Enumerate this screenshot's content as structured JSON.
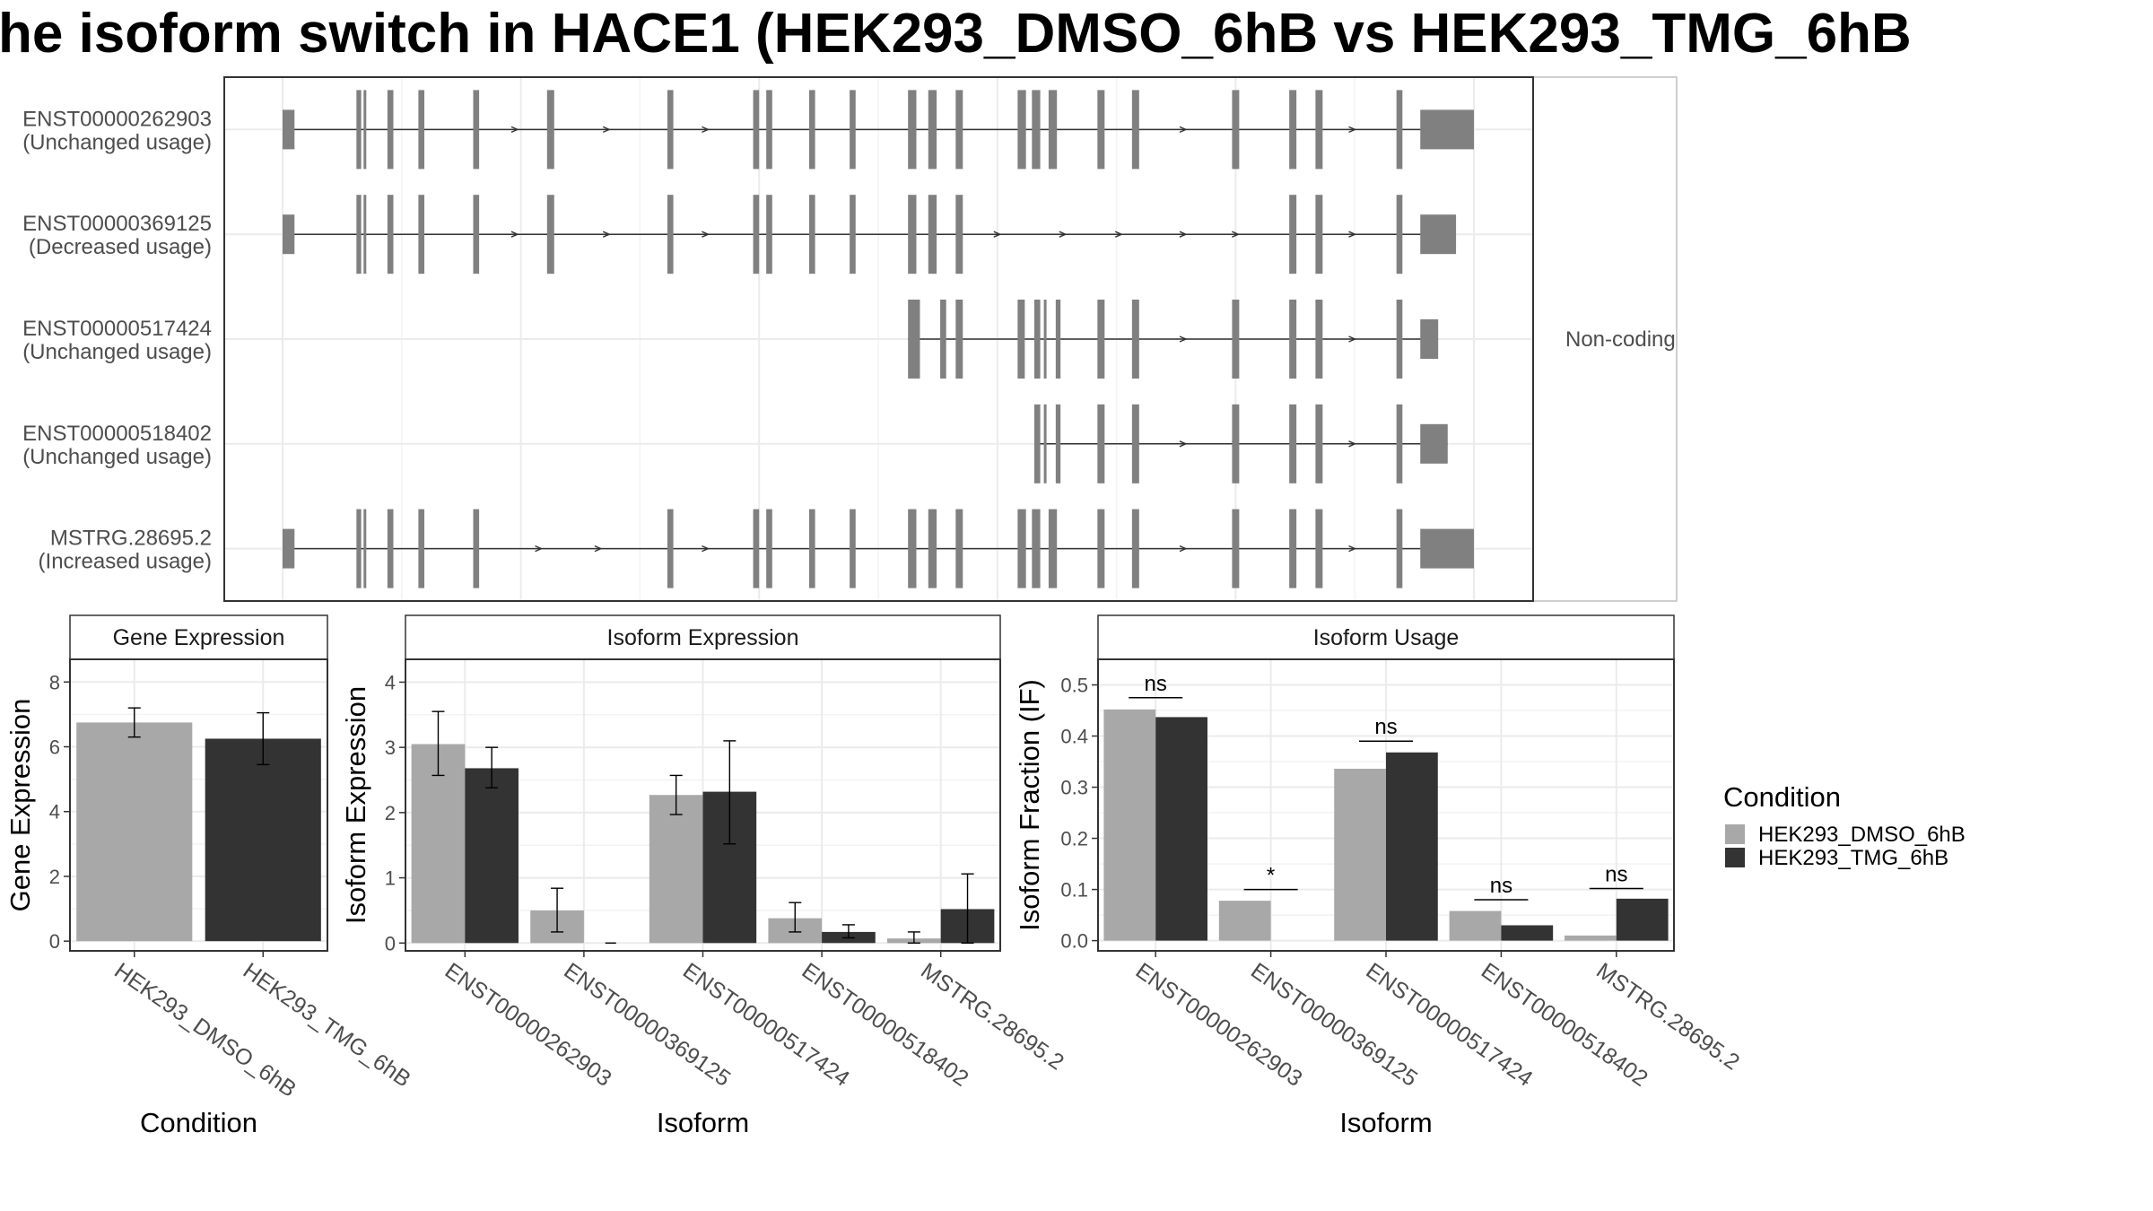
{
  "title": "he isoform switch in HACE1 (HEK293_DMSO_6hB vs HEK293_TMG_6hB",
  "colors": {
    "dmso": "#a8a8a8",
    "tmg": "#333333",
    "exon": "#808080",
    "grid": "#ebebeb",
    "panel_border": "#333333",
    "strip_fill": "#ffffff"
  },
  "structure_panel": {
    "side_label": "Non-coding",
    "genomic_range": [
      0,
      100
    ],
    "transcripts": [
      {
        "label": "ENST00000262903",
        "usage": "(Unchanged usage)",
        "exons": [
          [
            0,
            1
          ],
          [
            6.2,
            6.6
          ],
          [
            6.8,
            7
          ],
          [
            8.8,
            9.3
          ],
          [
            11.4,
            11.9
          ],
          [
            16,
            16.5
          ],
          [
            22.2,
            22.8
          ],
          [
            32.3,
            32.8
          ],
          [
            39.5,
            40
          ],
          [
            40.6,
            41.1
          ],
          [
            44.2,
            44.7
          ],
          [
            47.6,
            48.1
          ],
          [
            52.5,
            53.2
          ],
          [
            54.2,
            54.9
          ],
          [
            56.5,
            57.1
          ],
          [
            61.7,
            62.4
          ],
          [
            62.9,
            63.6
          ],
          [
            64.3,
            65
          ],
          [
            68.4,
            69
          ],
          [
            71.3,
            71.9
          ],
          [
            79.7,
            80.3
          ],
          [
            84.5,
            85.1
          ],
          [
            86.7,
            87.3
          ],
          [
            93.5,
            94
          ],
          [
            95.5,
            100
          ]
        ],
        "arrows": [
          19.5,
          27.2,
          35.5,
          75.6,
          89.8
        ]
      },
      {
        "label": "ENST00000369125",
        "usage": "(Decreased usage)",
        "exons": [
          [
            0,
            1
          ],
          [
            6.2,
            6.6
          ],
          [
            6.8,
            7
          ],
          [
            8.8,
            9.3
          ],
          [
            11.4,
            11.9
          ],
          [
            16,
            16.5
          ],
          [
            22.2,
            22.8
          ],
          [
            32.3,
            32.8
          ],
          [
            39.5,
            40
          ],
          [
            40.6,
            41.1
          ],
          [
            44.2,
            44.7
          ],
          [
            47.6,
            48.1
          ],
          [
            52.5,
            53.2
          ],
          [
            54.2,
            54.9
          ],
          [
            56.5,
            57.1
          ],
          [
            84.5,
            85.1
          ],
          [
            86.7,
            87.3
          ],
          [
            93.5,
            94
          ],
          [
            95.5,
            98.5
          ]
        ],
        "arrows": [
          19.5,
          27.2,
          35.5,
          60,
          65.5,
          70.2,
          75.6,
          80,
          89.8
        ]
      },
      {
        "label": "ENST00000517424",
        "usage": "(Unchanged usage)",
        "exons": [
          [
            52.5,
            53.5
          ],
          [
            55.2,
            55.7
          ],
          [
            56.5,
            57.1
          ],
          [
            61.7,
            62.3
          ],
          [
            63.1,
            63.6
          ],
          [
            63.9,
            64.1
          ],
          [
            64.9,
            65.3
          ],
          [
            68.4,
            69
          ],
          [
            71.3,
            71.9
          ],
          [
            79.7,
            80.3
          ],
          [
            84.5,
            85.1
          ],
          [
            86.7,
            87.3
          ],
          [
            93.5,
            94
          ],
          [
            95.5,
            97
          ]
        ],
        "arrows": [
          75.6,
          89.8
        ]
      },
      {
        "label": "ENST00000518402",
        "usage": "(Unchanged usage)",
        "exons": [
          [
            63.1,
            63.6
          ],
          [
            63.9,
            64.1
          ],
          [
            64.9,
            65.3
          ],
          [
            68.4,
            69
          ],
          [
            71.3,
            71.9
          ],
          [
            79.7,
            80.3
          ],
          [
            84.5,
            85.1
          ],
          [
            86.7,
            87.3
          ],
          [
            93.5,
            94
          ],
          [
            95.5,
            97.8
          ]
        ],
        "arrows": [
          75.6,
          80,
          89.8
        ]
      },
      {
        "label": "MSTRG.28695.2",
        "usage": "(Increased usage)",
        "exons": [
          [
            0,
            1
          ],
          [
            6.2,
            6.6
          ],
          [
            6.8,
            7
          ],
          [
            8.8,
            9.3
          ],
          [
            11.4,
            11.9
          ],
          [
            16,
            16.5
          ],
          [
            32.3,
            32.8
          ],
          [
            39.5,
            40
          ],
          [
            40.6,
            41.1
          ],
          [
            44.2,
            44.7
          ],
          [
            47.6,
            48.1
          ],
          [
            52.5,
            53.2
          ],
          [
            54.2,
            54.9
          ],
          [
            56.5,
            57.1
          ],
          [
            61.7,
            62.4
          ],
          [
            62.9,
            63.6
          ],
          [
            64.3,
            65
          ],
          [
            68.4,
            69
          ],
          [
            71.3,
            71.9
          ],
          [
            79.7,
            80.3
          ],
          [
            84.5,
            85.1
          ],
          [
            86.7,
            87.3
          ],
          [
            93.5,
            94
          ],
          [
            95.5,
            100
          ]
        ],
        "arrows": [
          21.5,
          26.5,
          35.5,
          75.6,
          89.8
        ]
      }
    ]
  },
  "chart_data": [
    {
      "type": "bar",
      "strip": "Gene Expression",
      "xlabel": "Condition",
      "ylabel": "Gene Expression",
      "ylim": [
        -0.3,
        8.7
      ],
      "yticks": [
        0,
        2,
        4,
        6,
        8
      ],
      "categories": [
        "HEK293_DMSO_6hB",
        "HEK293_TMG_6hB"
      ],
      "values": [
        6.75,
        6.25
      ],
      "errors": [
        [
          6.3,
          7.2
        ],
        [
          5.45,
          7.05
        ]
      ]
    },
    {
      "type": "bar",
      "strip": "Isoform Expression",
      "xlabel": "Isoform",
      "ylabel": "Isoform Expression",
      "ylim": [
        -0.12,
        4.35
      ],
      "yticks": [
        0,
        1,
        2,
        3,
        4
      ],
      "categories": [
        "ENST00000262903",
        "ENST00000369125",
        "ENST00000517424",
        "ENST00000518402",
        "MSTRG.28695.2"
      ],
      "series": [
        {
          "name": "HEK293_DMSO_6hB",
          "values": [
            3.05,
            0.5,
            2.27,
            0.38,
            0.07
          ],
          "errors": [
            [
              2.57,
              3.55
            ],
            [
              0.17,
              0.84
            ],
            [
              1.97,
              2.57
            ],
            [
              0.17,
              0.62
            ],
            [
              0.0,
              0.17
            ]
          ]
        },
        {
          "name": "HEK293_TMG_6hB",
          "values": [
            2.68,
            0.0,
            2.32,
            0.17,
            0.52
          ],
          "errors": [
            [
              2.38,
              3.0
            ],
            [
              0.0,
              0.0
            ],
            [
              1.52,
              3.1
            ],
            [
              0.08,
              0.28
            ],
            [
              0.0,
              1.06
            ]
          ]
        }
      ]
    },
    {
      "type": "bar",
      "strip": "Isoform Usage",
      "xlabel": "Isoform",
      "ylabel": "Isoform Fraction (IF)",
      "ylim": [
        -0.02,
        0.55
      ],
      "yticks": [
        0.0,
        0.1,
        0.2,
        0.3,
        0.4,
        0.5
      ],
      "ytick_labels": [
        "0.0",
        "0.1",
        "0.2",
        "0.3",
        "0.4",
        "0.5"
      ],
      "categories": [
        "ENST00000262903",
        "ENST00000369125",
        "ENST00000517424",
        "ENST00000518402",
        "MSTRG.28695.2"
      ],
      "series": [
        {
          "name": "HEK293_DMSO_6hB",
          "values": [
            0.452,
            0.078,
            0.336,
            0.058,
            0.01
          ]
        },
        {
          "name": "HEK293_TMG_6hB",
          "values": [
            0.437,
            0.0,
            0.368,
            0.03,
            0.082
          ]
        }
      ],
      "significance": [
        {
          "label": "ns",
          "y": 0.475
        },
        {
          "label": "*",
          "y": 0.1
        },
        {
          "label": "ns",
          "y": 0.39
        },
        {
          "label": "ns",
          "y": 0.08
        },
        {
          "label": "ns",
          "y": 0.102
        }
      ]
    }
  ],
  "legend": {
    "title": "Condition",
    "items": [
      {
        "label": "HEK293_DMSO_6hB",
        "color": "#a8a8a8"
      },
      {
        "label": "HEK293_TMG_6hB",
        "color": "#333333"
      }
    ]
  }
}
